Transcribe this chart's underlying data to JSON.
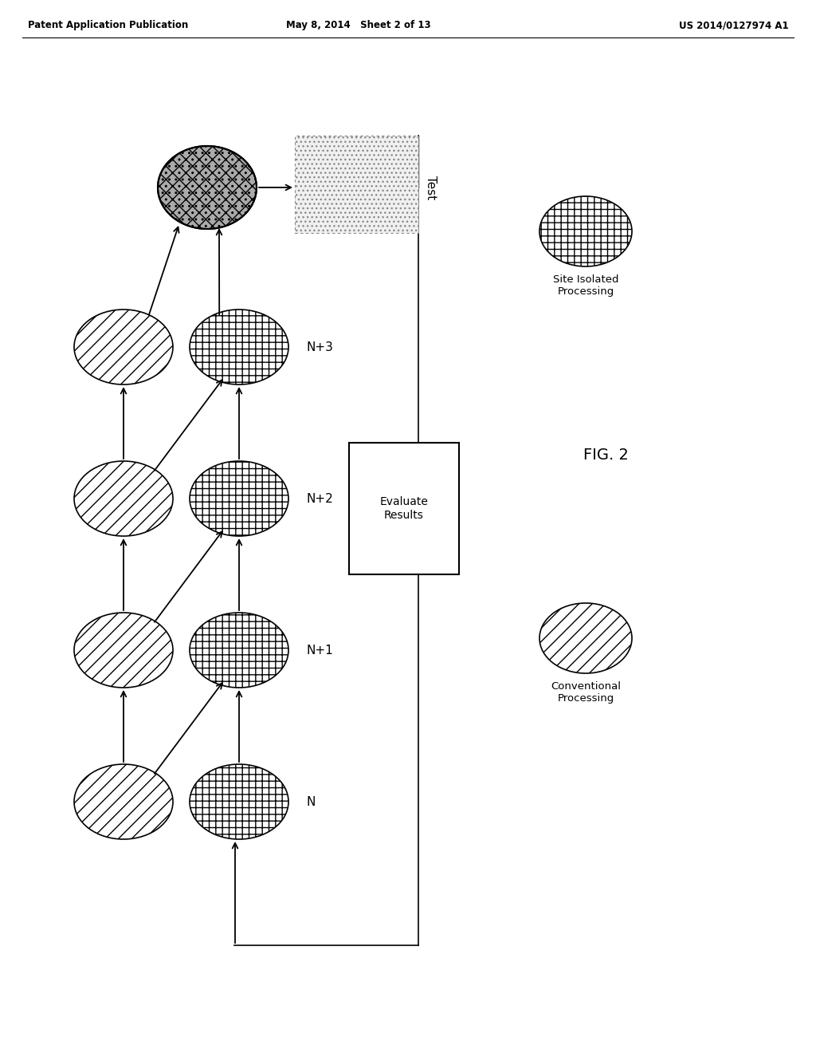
{
  "title_left": "Patent Application Publication",
  "title_center": "May 8, 2014   Sheet 2 of 13",
  "title_right": "US 2014/0127974 A1",
  "fig_label": "FIG. 2",
  "background_color": "#ffffff",
  "text_color": "#000000",
  "label_test": "Test",
  "label_evaluate": "Evaluate\nResults",
  "label_site_isolated": "Site Isolated\nProcessing",
  "label_conventional": "Conventional\nProcessing",
  "row_labels": [
    "N",
    "N+1",
    "N+2",
    "N+3"
  ]
}
